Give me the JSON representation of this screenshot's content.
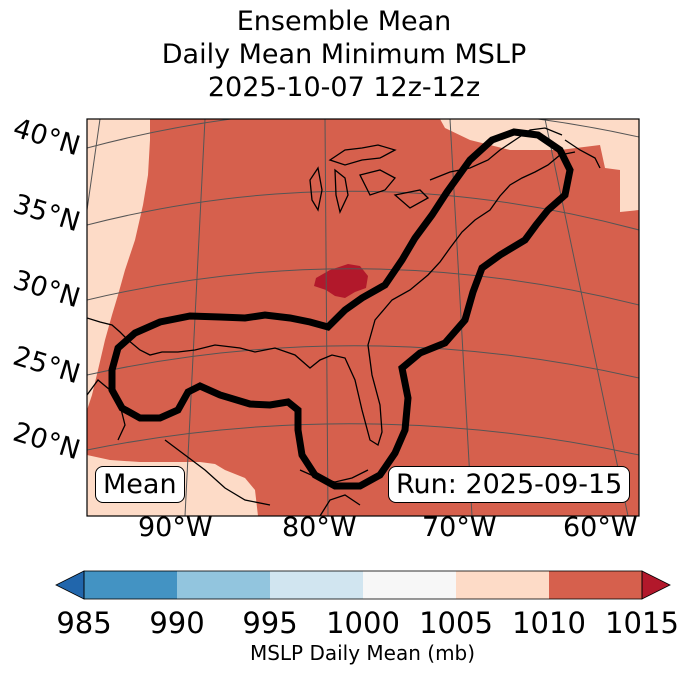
{
  "title": {
    "line1": "Ensemble Mean",
    "line2": "Daily Mean Minimum MSLP",
    "line3": "2025-10-07 12z-12z"
  },
  "map": {
    "lat_labels": [
      "40°N",
      "35°N",
      "30°N",
      "25°N",
      "20°N"
    ],
    "lon_labels": [
      "90°W",
      "80°W",
      "70°W",
      "60°W"
    ],
    "mean_box": "Mean",
    "run_box": "Run: 2025-09-15",
    "field_colors": {
      "bin_1005_1010": "#fddbc7",
      "bin_1010_1015": "#d6604d",
      "above_1015": "#b2182b",
      "coast": "#000000",
      "contour": "#000000",
      "grid": "#555555"
    }
  },
  "colorbar": {
    "label": "MSLP Daily Mean (mb)",
    "ticks": [
      "985",
      "990",
      "995",
      "1000",
      "1005",
      "1010",
      "1015"
    ],
    "tick_values": [
      985,
      990,
      995,
      1000,
      1005,
      1010,
      1015
    ],
    "bins": [
      {
        "from": 985,
        "to": 990,
        "color": "#4393c3"
      },
      {
        "from": 990,
        "to": 995,
        "color": "#92c5de"
      },
      {
        "from": 995,
        "to": 1000,
        "color": "#d1e5f0"
      },
      {
        "from": 1000,
        "to": 1005,
        "color": "#f7f7f7"
      },
      {
        "from": 1005,
        "to": 1010,
        "color": "#fddbc7"
      },
      {
        "from": 1010,
        "to": 1015,
        "color": "#d6604d"
      }
    ],
    "under_color": "#2166ac",
    "over_color": "#b2182b"
  }
}
